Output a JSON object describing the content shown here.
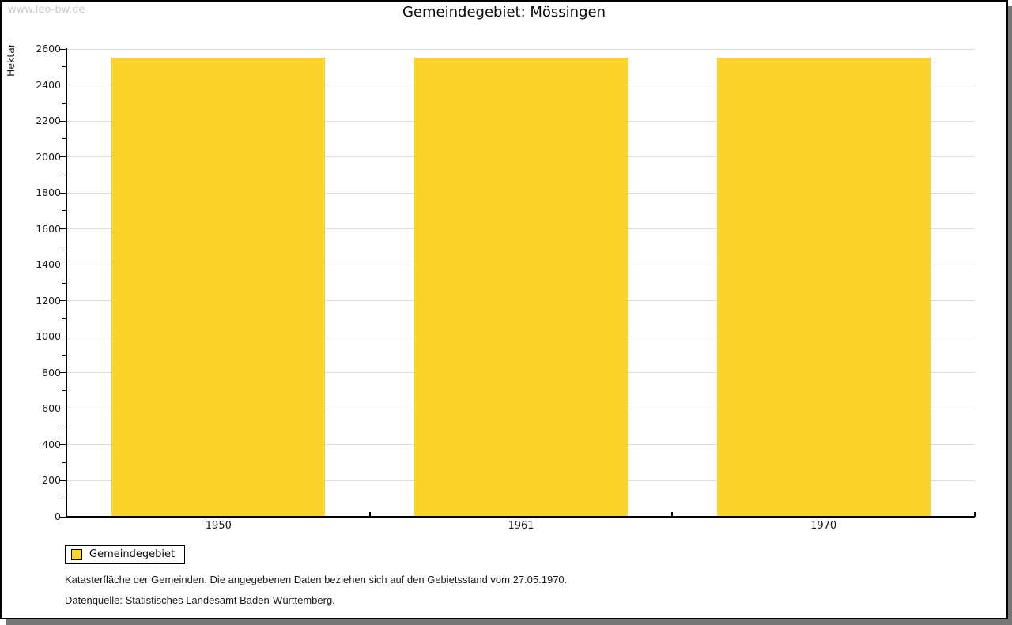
{
  "watermark": "www.leo-bw.de",
  "title": "Gemeindegebiet: Mössingen",
  "chart_data": {
    "type": "bar",
    "title": "Gemeindegebiet: Mössingen",
    "categories": [
      "1950",
      "1961",
      "1970"
    ],
    "series": [
      {
        "name": "Gemeindegebiet",
        "values": [
          2550,
          2550,
          2550
        ]
      }
    ],
    "xlabel": "",
    "ylabel": "Hektar",
    "ylim": [
      0,
      2600
    ],
    "y_major_step": 200,
    "y_minor_step": 100,
    "grid": "horizontal-major-only",
    "legend_position": "bottom-left",
    "bar_color": "#FCD32B"
  },
  "legend": {
    "items": [
      {
        "label": "Gemeindegebiet",
        "color": "#FCD32B"
      }
    ]
  },
  "footnotes": [
    "Katasterfläche der Gemeinden. Die angegebenen Daten beziehen sich auf den Gebietsstand vom 27.05.1970.",
    "Datenquelle: Statistisches Landesamt Baden-Württemberg."
  ],
  "colors": {
    "bar": "#FCD32B",
    "gridline": "#DDDDDD",
    "axis": "#000000",
    "shadow": "#757575",
    "watermark": "#CBCBCB",
    "background": "#FFFFFF"
  }
}
